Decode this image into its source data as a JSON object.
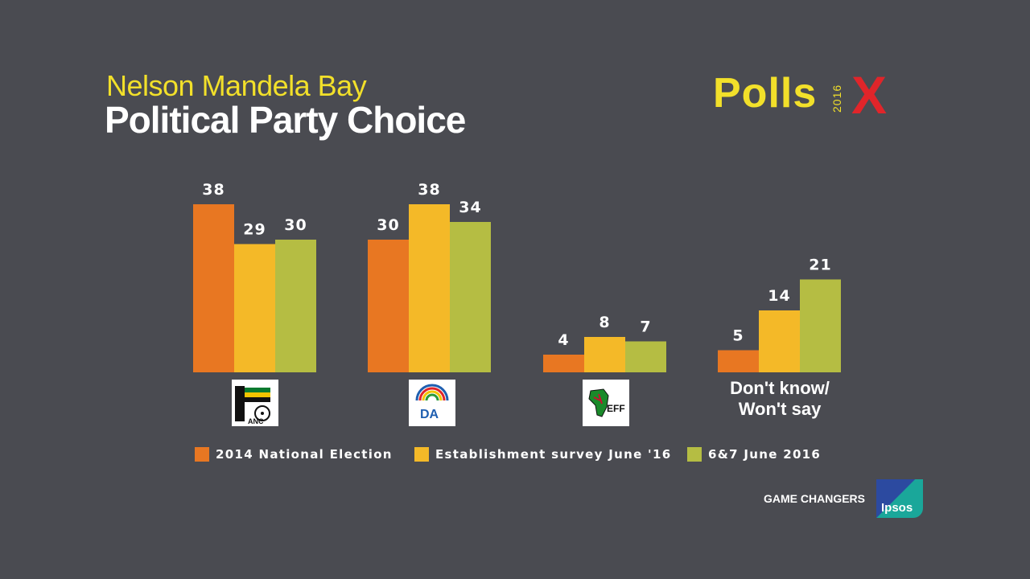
{
  "header": {
    "subtitle": "Nelson Mandela Bay",
    "title": "Political Party Choice"
  },
  "brand": {
    "polls_word": "Polls",
    "polls_year": "2016",
    "polls_x": "X",
    "game_changers": "GAME CHANGERS",
    "ipsos": "Ipsos"
  },
  "chart_data": {
    "type": "bar",
    "title": "Political Party Choice",
    "subtitle": "Nelson Mandela Bay",
    "categories": [
      "ANC",
      "DA",
      "EFF",
      "Don't know/\nWon't say"
    ],
    "category_display": [
      "logo-anc",
      "logo-da",
      "logo-eff",
      "text"
    ],
    "series": [
      {
        "name": "2014 National Election",
        "color": "#e87722",
        "values": [
          38,
          30,
          4,
          5
        ]
      },
      {
        "name": "Establishment survey June '16",
        "color": "#f4b928",
        "values": [
          29,
          38,
          8,
          14
        ]
      },
      {
        "name": "6&7 June 2016",
        "color": "#b5bd43",
        "values": [
          30,
          34,
          7,
          21
        ]
      }
    ],
    "ylim": [
      0,
      40
    ],
    "grid": false,
    "legend": "bottom",
    "logo_labels": {
      "anc": "ANC",
      "da": "DA",
      "eff": "EFF"
    }
  },
  "colors": {
    "background": "#4a4b51",
    "accent_yellow": "#f2e02a",
    "accent_red": "#e0252a"
  }
}
